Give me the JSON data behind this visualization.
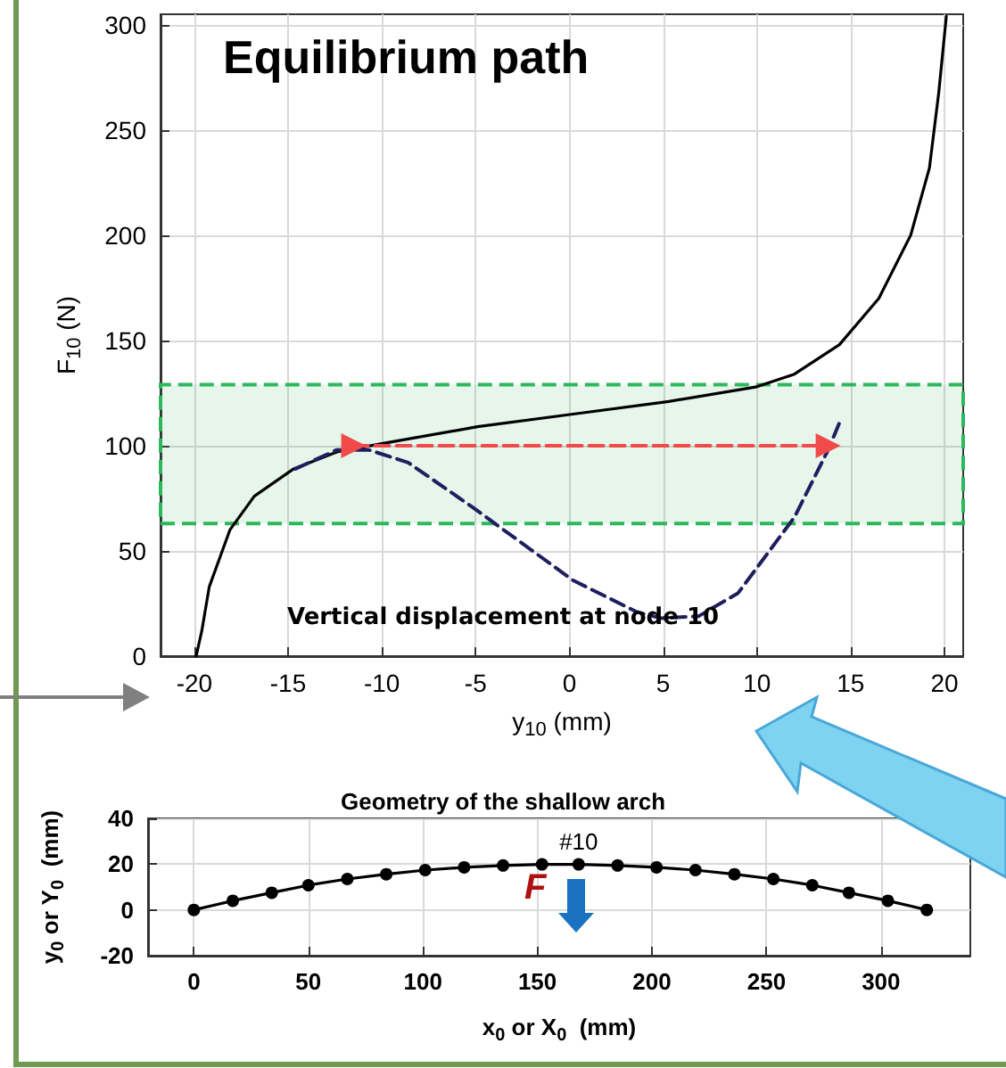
{
  "chart_data": [
    {
      "type": "line",
      "title": "Equilibrium path",
      "xlabel": "y$_{10}$ (mm)",
      "ylabel": "F$_{10}$ (N)",
      "xlim": [
        -21.8,
        21
      ],
      "xticks": [
        -20,
        -15,
        -10,
        -5,
        0,
        5,
        10,
        15,
        20
      ],
      "ylim": [
        0,
        305
      ],
      "yticks": [
        0,
        50,
        100,
        150,
        200,
        250,
        300
      ],
      "grid": true,
      "series": [
        {
          "color": "#000000",
          "line_style": "solid",
          "marker": "none",
          "x": [
            -19.9,
            -19.6,
            -19.2,
            -18.1,
            -16.8,
            -14.7,
            -12.4,
            -10,
            -4.9,
            0.2,
            5.3,
            10,
            12,
            14.4,
            16.5,
            18.2,
            19.2,
            19.7,
            20.1
          ],
          "values": [
            0,
            12,
            33,
            60,
            76,
            89,
            97,
            101,
            109,
            115,
            121,
            128,
            134,
            148,
            170,
            200,
            232,
            268,
            304
          ]
        },
        {
          "color": "#1f1f5f",
          "line_style": "dashed",
          "marker": "none",
          "x": [
            -14.6,
            -12.4,
            -10.7,
            -8.6,
            -5.2,
            0.2,
            3.6,
            4.9,
            6.9,
            9,
            12,
            13.8,
            14.5
          ],
          "values": [
            89,
            98,
            98,
            92,
            71,
            36,
            21,
            18,
            19,
            30,
            66,
            98,
            113
          ]
        },
        {
          "color": "#f04a4a",
          "line_style": "dashed",
          "marker": "triangle",
          "x": [
            -11.5,
            13.8
          ],
          "values": [
            100,
            100
          ]
        }
      ],
      "bands": [
        {
          "axis": "y",
          "from": 63,
          "to": 129,
          "color": "#2eb85c"
        }
      ],
      "annotations": [
        "Vertical displacement at node 10"
      ]
    },
    {
      "type": "line",
      "title": "Geometry of the shallow arch",
      "xlabel": "x$_{0}$ or X$_{0}$  (mm)",
      "ylabel": "y$_{0}$ or Y$_{0}$  (mm)",
      "xlim": [
        -20,
        339
      ],
      "xticks": [
        0,
        50,
        100,
        150,
        200,
        250,
        300
      ],
      "ylim": [
        -20,
        40
      ],
      "yticks": [
        -20,
        0,
        20,
        40
      ],
      "grid": true,
      "series": [
        {
          "color": "#000000",
          "line_style": "solid",
          "marker": "circle",
          "x": [
            0,
            17,
            34,
            50,
            67,
            84,
            101,
            118,
            135,
            152,
            168,
            185,
            202,
            219,
            236,
            253,
            270,
            286,
            303,
            320
          ],
          "values": [
            0,
            4,
            7.5,
            10.8,
            13.5,
            15.6,
            17.4,
            18.6,
            19.4,
            19.9,
            19.9,
            19.4,
            18.6,
            17.4,
            15.6,
            13.5,
            10.8,
            7.5,
            4,
            0
          ]
        }
      ],
      "annotations": [
        {
          "text": "#10",
          "x": 168,
          "y": 20
        },
        "F"
      ]
    }
  ]
}
